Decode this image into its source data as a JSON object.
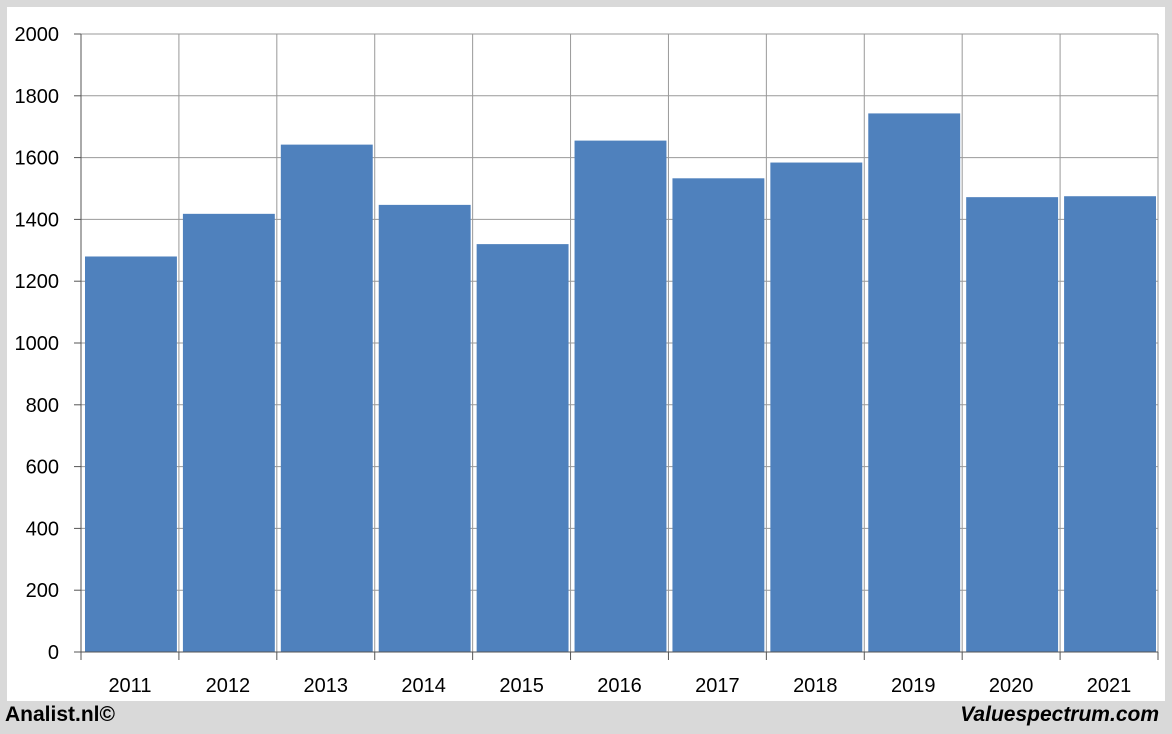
{
  "chart_data": {
    "type": "bar",
    "categories": [
      "2011",
      "2012",
      "2013",
      "2014",
      "2015",
      "2016",
      "2017",
      "2018",
      "2019",
      "2020",
      "2021"
    ],
    "values": [
      1280,
      1418,
      1642,
      1447,
      1320,
      1655,
      1533,
      1584,
      1743,
      1472,
      1475
    ],
    "y_ticks": [
      0,
      200,
      400,
      600,
      800,
      1000,
      1200,
      1400,
      1600,
      1800,
      2000
    ],
    "ylim": [
      0,
      2000
    ],
    "title": "",
    "xlabel": "",
    "ylabel": "",
    "grid": true,
    "legend": "none",
    "bar_color": "#4f81bd",
    "background_color": "#ffffff",
    "frame_color": "#d9d9d9",
    "grid_color": "#999999"
  },
  "footer": {
    "left": "Analist.nl©",
    "right": "Valuespectrum.com"
  }
}
